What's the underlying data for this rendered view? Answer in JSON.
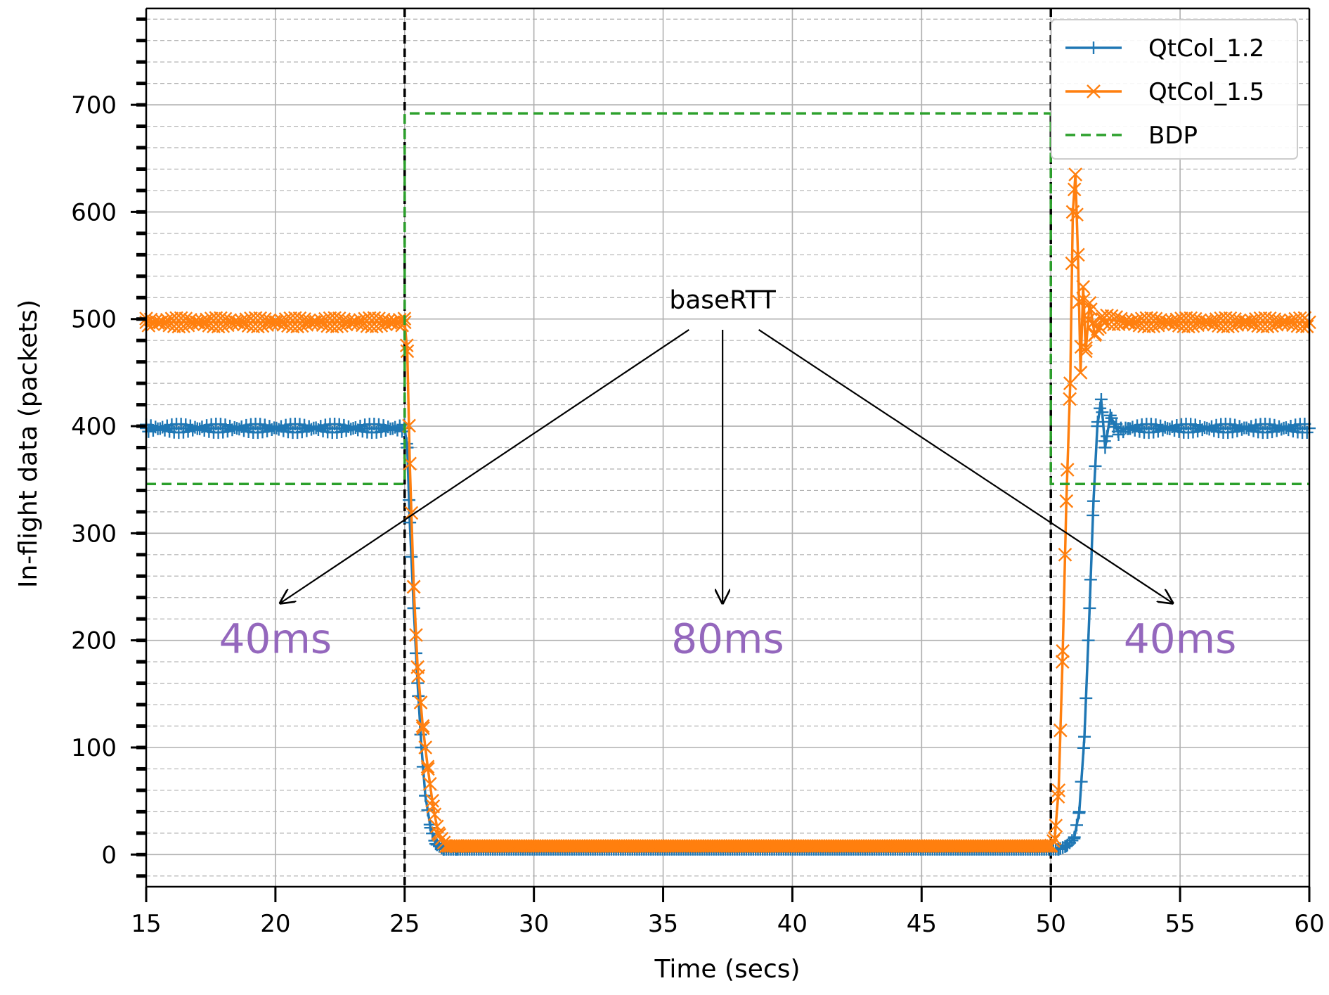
{
  "chart_data": {
    "type": "line",
    "title": "",
    "xlabel": "Time (secs)",
    "ylabel": "In-flight data (packets)",
    "xlim": [
      15,
      60
    ],
    "ylim": [
      -30,
      790
    ],
    "xticks": [
      15,
      20,
      25,
      30,
      35,
      40,
      45,
      50,
      55,
      60
    ],
    "yticks": [
      0,
      100,
      200,
      300,
      400,
      500,
      600,
      700
    ],
    "grid": true,
    "minor_grid_y": true,
    "legend_position": "top-right",
    "vlines": [
      25,
      50
    ],
    "series": [
      {
        "name": "QtCol_1.2",
        "color": "#1f77b4",
        "marker": "plus",
        "x": [
          15,
          25,
          25.1,
          25.2,
          25.35,
          25.5,
          25.65,
          25.8,
          26.0,
          26.2,
          26.5,
          27,
          50,
          50.3,
          50.6,
          50.9,
          51.1,
          51.3,
          51.5,
          51.65,
          51.8,
          51.95,
          52.1,
          52.3,
          52.6,
          53,
          60
        ],
        "y": [
          398,
          398,
          380,
          310,
          230,
          160,
          100,
          55,
          25,
          10,
          5,
          5,
          5,
          5,
          8,
          15,
          40,
          110,
          230,
          330,
          400,
          425,
          380,
          410,
          395,
          398,
          398
        ]
      },
      {
        "name": "QtCol_1.5",
        "color": "#ff7f0e",
        "marker": "x",
        "x": [
          15,
          25,
          25.1,
          25.2,
          25.35,
          25.5,
          25.7,
          25.9,
          26.1,
          26.3,
          26.6,
          27,
          50,
          50.15,
          50.3,
          50.45,
          50.6,
          50.75,
          50.85,
          50.95,
          51.05,
          51.15,
          51.25,
          51.35,
          51.5,
          51.7,
          52,
          53,
          60
        ],
        "y": [
          497,
          497,
          470,
          365,
          250,
          175,
          120,
          80,
          45,
          20,
          8,
          8,
          8,
          15,
          60,
          180,
          330,
          440,
          600,
          635,
          560,
          450,
          530,
          470,
          515,
          485,
          500,
          497,
          497
        ]
      },
      {
        "name": "BDP",
        "color": "#2ca02c",
        "style": "dashed",
        "x": [
          15,
          25,
          25,
          50,
          50,
          60
        ],
        "y": [
          346,
          346,
          692,
          692,
          346,
          346
        ]
      }
    ],
    "annotations": [
      {
        "text": "baseRTT",
        "x": 37.3,
        "y": 510,
        "color": "#000000"
      },
      {
        "text": "40ms",
        "x": 20,
        "y": 200,
        "color": "#9467bd"
      },
      {
        "text": "80ms",
        "x": 37.5,
        "y": 200,
        "color": "#9467bd"
      },
      {
        "text": "40ms",
        "x": 55,
        "y": 200,
        "color": "#9467bd"
      }
    ],
    "arrows": [
      {
        "from": [
          36,
          490
        ],
        "to": [
          20.2,
          235
        ]
      },
      {
        "from": [
          37.3,
          490
        ],
        "to": [
          37.3,
          235
        ]
      },
      {
        "from": [
          38.7,
          490
        ],
        "to": [
          54.7,
          235
        ]
      }
    ]
  }
}
